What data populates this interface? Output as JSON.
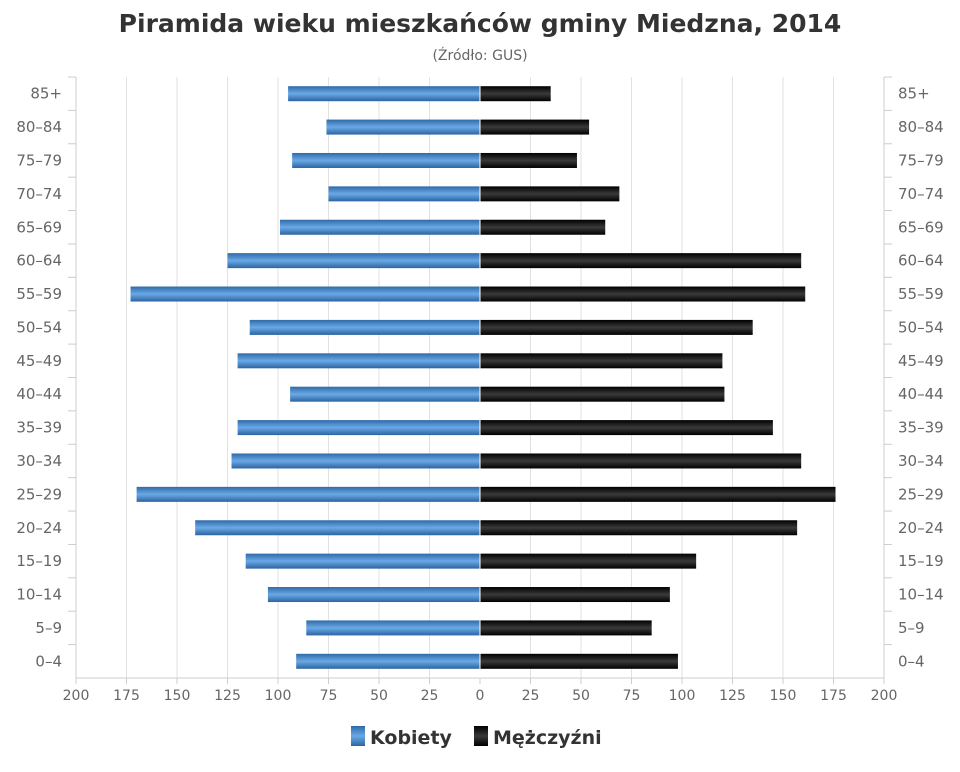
{
  "chart_data": {
    "type": "bar",
    "orientation": "horizontal-pyramid",
    "title": "Piramida wieku mieszkańców gminy Miedzna, 2014",
    "subtitle": "(Źródło: GUS)",
    "categories": [
      "85+",
      "80-84",
      "75-79",
      "70-74",
      "65-69",
      "60-64",
      "55-59",
      "50-54",
      "45-49",
      "40-44",
      "35-39",
      "30-34",
      "25-29",
      "20-24",
      "15-19",
      "10-14",
      "5-9",
      "0-4"
    ],
    "series": [
      {
        "name": "Kobiety",
        "side": "left",
        "color": "#4a8fd4",
        "values": [
          95,
          76,
          93,
          75,
          99,
          125,
          173,
          114,
          120,
          94,
          120,
          123,
          170,
          141,
          116,
          105,
          86,
          91
        ]
      },
      {
        "name": "Mężczyźni",
        "side": "right",
        "color": "#111111",
        "values": [
          35,
          54,
          48,
          69,
          62,
          159,
          161,
          135,
          120,
          121,
          145,
          159,
          176,
          157,
          107,
          94,
          85,
          98
        ]
      }
    ],
    "xticks": [
      "200",
      "175",
      "150",
      "125",
      "100",
      "75",
      "50",
      "25",
      "0",
      "25",
      "50",
      "75",
      "100",
      "125",
      "150",
      "175",
      "200"
    ],
    "xlim": [
      -200,
      200
    ],
    "grid": true,
    "legend": "bottom"
  }
}
